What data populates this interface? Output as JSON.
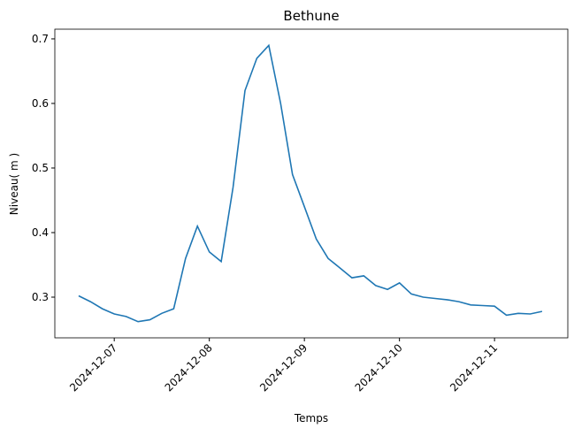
{
  "chart_data": {
    "type": "line",
    "title": "Bethune",
    "xlabel": "Temps",
    "ylabel": "Niveau( m )",
    "x": [
      "2024-12-06 15:00",
      "2024-12-06 18:00",
      "2024-12-06 21:00",
      "2024-12-07 00:00",
      "2024-12-07 03:00",
      "2024-12-07 06:00",
      "2024-12-07 09:00",
      "2024-12-07 12:00",
      "2024-12-07 15:00",
      "2024-12-07 18:00",
      "2024-12-07 21:00",
      "2024-12-08 00:00",
      "2024-12-08 03:00",
      "2024-12-08 06:00",
      "2024-12-08 09:00",
      "2024-12-08 12:00",
      "2024-12-08 15:00",
      "2024-12-08 18:00",
      "2024-12-08 21:00",
      "2024-12-09 00:00",
      "2024-12-09 03:00",
      "2024-12-09 06:00",
      "2024-12-09 09:00",
      "2024-12-09 12:00",
      "2024-12-09 15:00",
      "2024-12-09 18:00",
      "2024-12-09 21:00",
      "2024-12-10 00:00",
      "2024-12-10 03:00",
      "2024-12-10 06:00",
      "2024-12-10 09:00",
      "2024-12-10 12:00",
      "2024-12-10 15:00",
      "2024-12-10 18:00",
      "2024-12-10 21:00",
      "2024-12-11 00:00",
      "2024-12-11 03:00",
      "2024-12-11 06:00",
      "2024-12-11 09:00",
      "2024-12-11 12:00"
    ],
    "series": [
      {
        "name": "Niveau",
        "color": "#1f77b4",
        "values": [
          0.302,
          0.293,
          0.282,
          0.274,
          0.27,
          0.262,
          0.265,
          0.275,
          0.282,
          0.36,
          0.41,
          0.37,
          0.355,
          0.47,
          0.62,
          0.67,
          0.69,
          0.6,
          0.49,
          0.44,
          0.39,
          0.36,
          0.345,
          0.33,
          0.333,
          0.318,
          0.312,
          0.322,
          0.305,
          0.3,
          0.298,
          0.296,
          0.293,
          0.288,
          0.287,
          0.286,
          0.272,
          0.275,
          0.274,
          0.278
        ]
      }
    ],
    "xlim": [
      "2024-12-06 09:00",
      "2024-12-11 18:30"
    ],
    "xticks": [
      "2024-12-07",
      "2024-12-08",
      "2024-12-09",
      "2024-12-10",
      "2024-12-11"
    ],
    "ylim": [
      0.237,
      0.715
    ],
    "yticks": [
      0.3,
      0.4,
      0.5,
      0.6,
      0.7
    ]
  }
}
